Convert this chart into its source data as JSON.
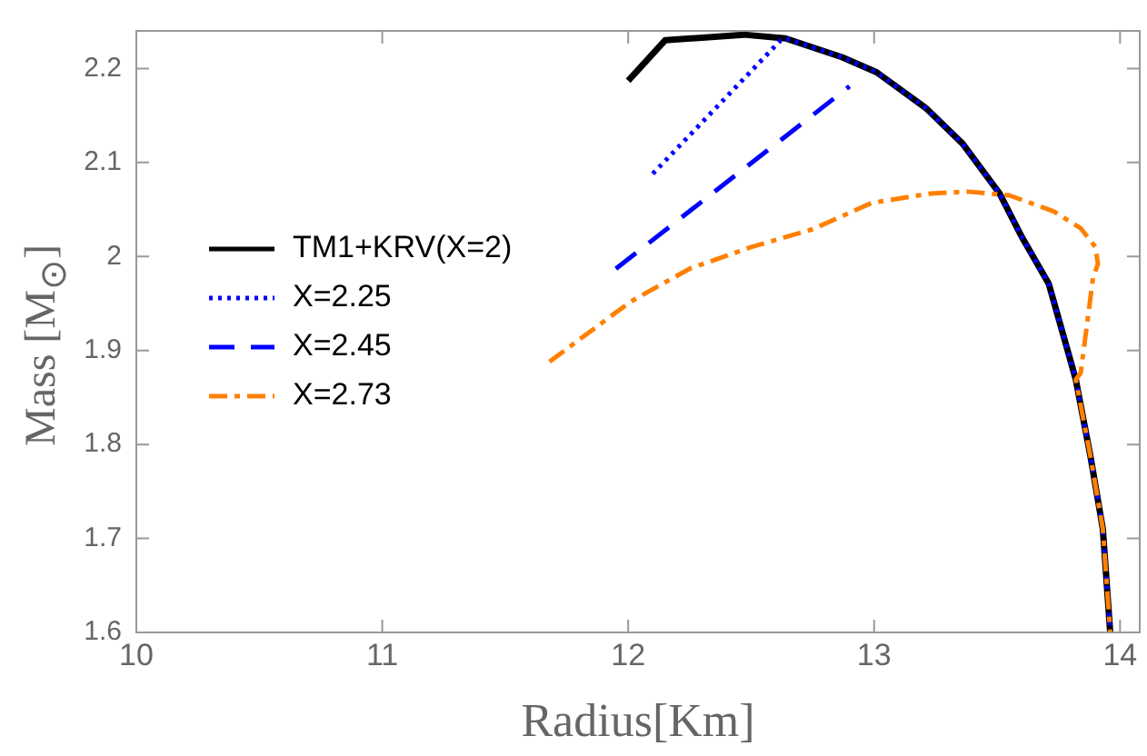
{
  "chart_data": {
    "type": "line",
    "xlabel": "Radius[Km]",
    "ylabel": "Mass  [M$_{⊙}$]",
    "xlim": [
      10,
      14.08
    ],
    "xticks": [
      10,
      11,
      12,
      13,
      14
    ],
    "ylim": [
      1.6,
      2.24
    ],
    "yticks": [
      1.6,
      1.7,
      1.8,
      1.9,
      2.0,
      2.1,
      2.2
    ],
    "grid": false,
    "legend": "left",
    "marker": "none",
    "series": [
      {
        "name": "TM1+KRV(X=2)",
        "color": "#000000",
        "line_style": "solid",
        "x": [
          12.0,
          12.15,
          12.47,
          12.64,
          12.87,
          13.01,
          13.21,
          13.36,
          13.51,
          13.6,
          13.71,
          13.79,
          13.82,
          13.88,
          13.93,
          13.96
        ],
        "values": [
          2.187,
          2.23,
          2.236,
          2.232,
          2.212,
          2.196,
          2.158,
          2.12,
          2.067,
          2.021,
          1.971,
          1.897,
          1.869,
          1.787,
          1.71,
          1.6
        ]
      },
      {
        "name": "X=2.25",
        "color": "#0000ff",
        "line_style": "dotted",
        "x": [
          12.1,
          12.62,
          12.64,
          12.87,
          13.01,
          13.21,
          13.36,
          13.51,
          13.6,
          13.71,
          13.79,
          13.82,
          13.88,
          13.93,
          13.96
        ],
        "values": [
          2.088,
          2.23,
          2.232,
          2.212,
          2.196,
          2.158,
          2.12,
          2.067,
          2.021,
          1.971,
          1.897,
          1.869,
          1.787,
          1.71,
          1.6
        ]
      },
      {
        "name": "X=2.45",
        "color": "#0000ff",
        "line_style": "dashed",
        "x": [
          11.95,
          12.9
        ],
        "values": [
          1.987,
          2.181
        ]
      },
      {
        "name": "X=2.73",
        "color": "#ff8000",
        "line_style": "dashdot",
        "x": [
          11.68,
          12.01,
          12.25,
          12.5,
          12.75,
          12.99,
          13.23,
          13.38,
          13.55,
          13.73,
          13.84,
          13.9,
          13.91,
          13.89,
          13.84,
          13.82,
          13.88,
          13.93,
          13.96
        ],
        "values": [
          1.888,
          1.952,
          1.987,
          2.01,
          2.029,
          2.057,
          2.067,
          2.069,
          2.065,
          2.048,
          2.03,
          2.01,
          1.992,
          1.977,
          1.876,
          1.869,
          1.787,
          1.71,
          1.6
        ]
      }
    ]
  }
}
